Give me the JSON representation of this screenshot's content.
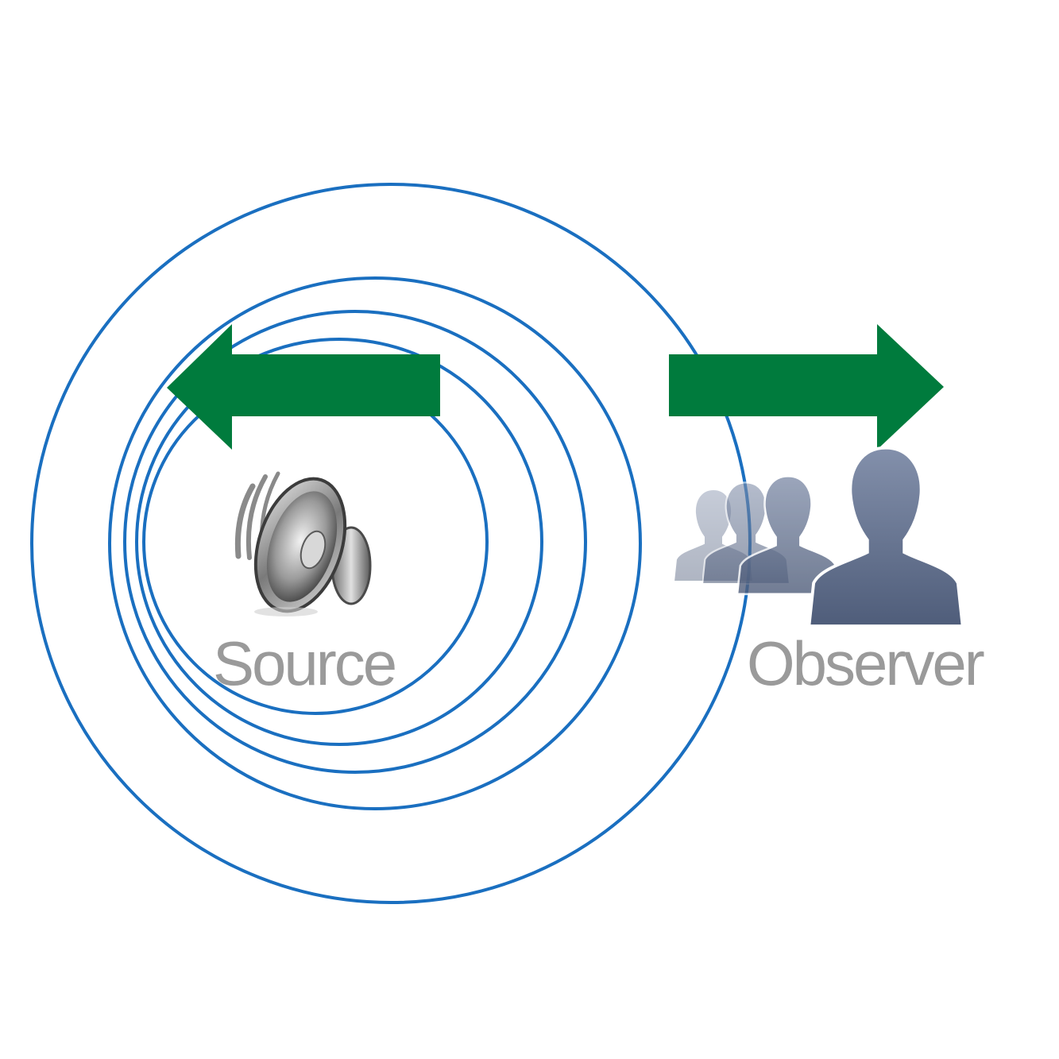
{
  "labels": {
    "source": "Source",
    "observer": "Observer"
  },
  "icons": {
    "source": "speaker-icon",
    "observer": "people-group-icon",
    "source_motion": "arrow-left-icon",
    "observer_motion": "arrow-right-icon"
  },
  "colors": {
    "wavefront": "#1a6fc0",
    "arrow": "#007b3d",
    "label": "#9a9a9a",
    "person": "#6f7d99",
    "speaker_body": "#8a8a8a"
  },
  "wavefront_count": 5
}
